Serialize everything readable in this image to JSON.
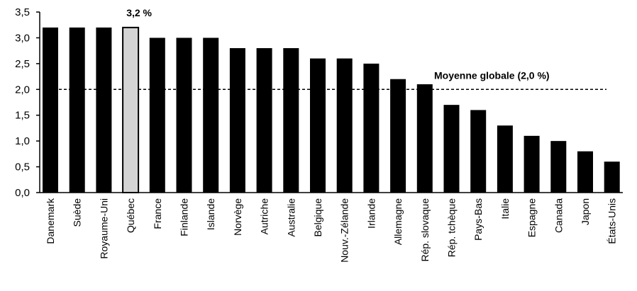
{
  "chart_data": {
    "type": "bar",
    "categories": [
      "Danemark",
      "Suède",
      "Royaume-Uni",
      "Québec",
      "France",
      "Finlande",
      "Islande",
      "Norvège",
      "Autriche",
      "Australie",
      "Belgique",
      "Nouv.-Zélande",
      "Irlande",
      "Allemagne",
      "Rép. slovaque",
      "Rép. tchèque",
      "Pays-Bas",
      "Italie",
      "Espagne",
      "Canada",
      "Japon",
      "États-Unis"
    ],
    "values": [
      3.2,
      3.2,
      3.2,
      3.2,
      3.0,
      3.0,
      3.0,
      2.8,
      2.8,
      2.8,
      2.6,
      2.6,
      2.5,
      2.2,
      2.1,
      1.7,
      1.6,
      1.3,
      1.1,
      1.0,
      0.8,
      0.6
    ],
    "highlight_category": "Québec",
    "highlight_label": "3,2 %",
    "ylim": [
      0,
      3.5
    ],
    "yticks": [
      "0,0",
      "0,5",
      "1,0",
      "1,5",
      "2,0",
      "2,5",
      "3,0",
      "3,5"
    ],
    "grid": false,
    "reference_line": {
      "value": 2.0,
      "label": "Moyenne globale (2,0 %)",
      "style": "dashed"
    },
    "colors": {
      "bar": "#000000",
      "highlight_fill": "#d4d4d4",
      "highlight_stroke": "#000000"
    }
  }
}
